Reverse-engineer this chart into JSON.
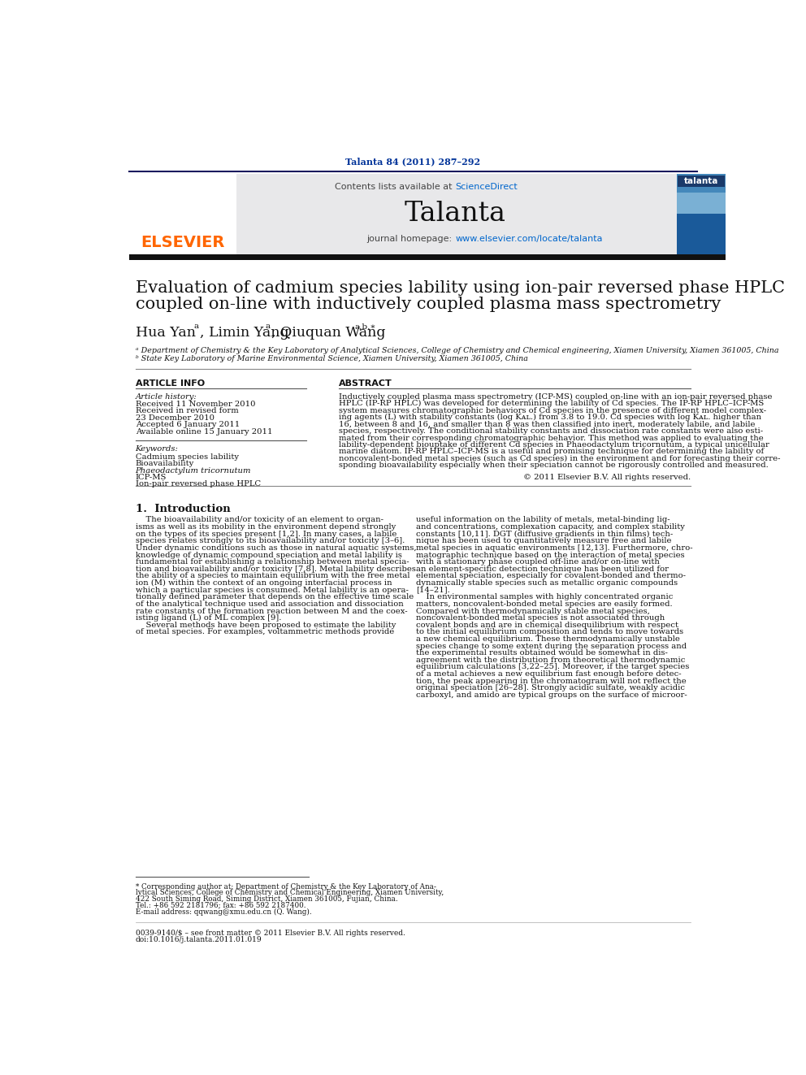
{
  "page_bg": "#ffffff",
  "header_journal_ref": "Talanta 84 (2011) 287–292",
  "header_journal_ref_color": "#003399",
  "journal_name": "Talanta",
  "contents_text": "Contents lists available at ",
  "sciencedirect_text": "ScienceDirect",
  "sciencedirect_color": "#0066cc",
  "journal_homepage": "journal homepage: ",
  "homepage_url": "www.elsevier.com/locate/talanta",
  "homepage_url_color": "#0066cc",
  "header_bg": "#e8e8ea",
  "dark_bar_color": "#1a1a1a",
  "elsevier_color": "#ff6600",
  "title_line1": "Evaluation of cadmium species lability using ion-pair reversed phase HPLC",
  "title_line2": "coupled on-line with inductively coupled plasma mass spectrometry",
  "affil_a": "ᵃ Department of Chemistry & the Key Laboratory of Analytical Sciences, College of Chemistry and Chemical engineering, Xiamen University, Xiamen 361005, China",
  "affil_b": "ᵇ State Key Laboratory of Marine Environmental Science, Xiamen University, Xiamen 361005, China",
  "article_info_header": "ARTICLE INFO",
  "abstract_header": "ABSTRACT",
  "article_history_label": "Article history:",
  "received_1": "Received 11 November 2010",
  "received_2": "Received in revised form",
  "received_2b": "23 December 2010",
  "accepted": "Accepted 6 January 2011",
  "available": "Available online 15 January 2011",
  "keywords_label": "Keywords:",
  "kw1": "Cadmium species lability",
  "kw2": "Bioavailability",
  "kw3": "Phaeodactylum tricornutum",
  "kw4": "ICP-MS",
  "kw5": "Ion-pair reversed phase HPLC",
  "copyright_text": "© 2011 Elsevier B.V. All rights reserved.",
  "section1_header": "1.  Introduction",
  "footnote_star": "* Corresponding author at: Department of Chemistry & the Key Laboratory of Ana-",
  "footnote_star2": "lytical Sciences, College of Chemistry and Chemical Engineering, Xiamen University,",
  "footnote_star3": "422 South Siming Road, Siming District, Xiamen 361005, Fujian, China.",
  "footnote_tel": "Tel.: +86 592 2181796; fax: +86 592 2187400.",
  "footnote_email": "E-mail address: qqwang@xmu.edu.cn (Q. Wang).",
  "footer_issn": "0039-9140/$ – see front matter © 2011 Elsevier B.V. All rights reserved.",
  "footer_doi": "doi:10.1016/j.talanta.2011.01.019"
}
